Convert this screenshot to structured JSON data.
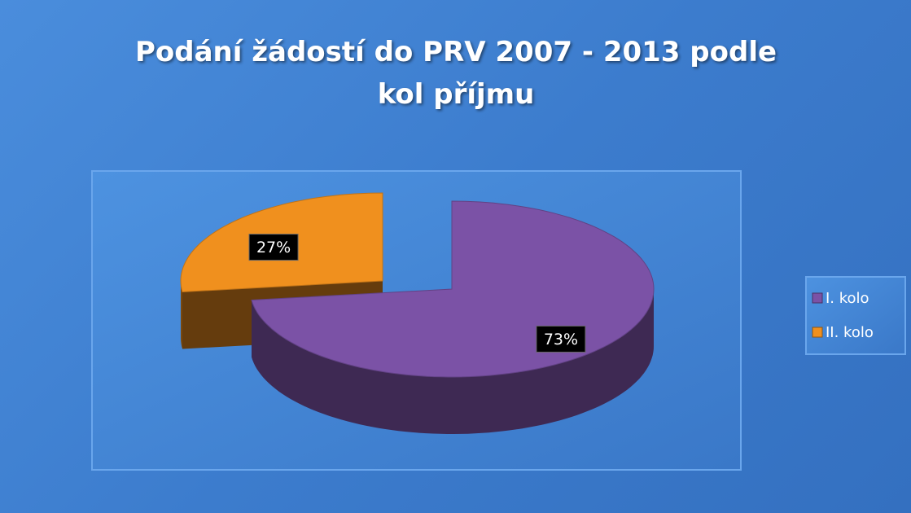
{
  "chart_data": {
    "type": "pie3d",
    "title": "Podání žádostí do PRV 2007 - 2013 podle kol příjmu",
    "categories": [
      "I. kolo",
      "II. kolo"
    ],
    "values": [
      73,
      27
    ],
    "value_labels": [
      "73%",
      "27%"
    ],
    "colors": [
      "#7b52a6",
      "#f0901e"
    ],
    "legend": "right"
  }
}
